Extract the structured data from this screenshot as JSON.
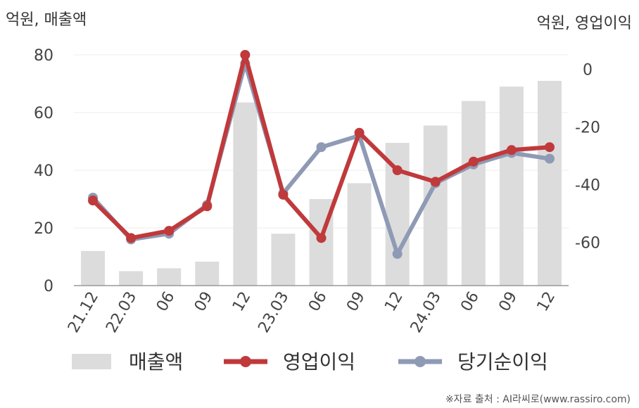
{
  "chart_data": {
    "type": "bar+line",
    "left_axis_title": "억원, 매출액",
    "right_axis_title": "억원, 영업이익",
    "categories": [
      "21.12",
      "22.03",
      "06",
      "09",
      "12",
      "23.03",
      "06",
      "09",
      "12",
      "24.03",
      "06",
      "09",
      "12"
    ],
    "left_ylim": [
      0,
      80
    ],
    "left_ticks": [
      0,
      20,
      40,
      60,
      80
    ],
    "right_ylim": [
      -75,
      5
    ],
    "right_ticks": [
      0,
      -20,
      -40,
      -60
    ],
    "grid": true,
    "legend_position": "bottom",
    "series": [
      {
        "name": "매출액",
        "kind": "bar",
        "axis": "left",
        "color": "#dcdcdc",
        "values": [
          12,
          5,
          6,
          8.3,
          63.5,
          18,
          30,
          35.5,
          49.5,
          55.5,
          64,
          69,
          71
        ]
      },
      {
        "name": "영업이익",
        "kind": "line",
        "axis": "right",
        "color": "#c0393b",
        "values": [
          -45.5,
          -58.5,
          -56,
          -47.5,
          5,
          -43.5,
          -58.5,
          -22,
          -35,
          -39,
          -32,
          -28,
          -27
        ]
      },
      {
        "name": "당기순이익",
        "kind": "line",
        "axis": "right",
        "color": "#8f9ab5",
        "values": [
          -44.5,
          -59,
          -57,
          -47,
          2,
          -43,
          -27,
          -23,
          -64,
          -39.5,
          -33,
          -29,
          -31
        ]
      }
    ]
  },
  "source_text": "※자료 출처 : AI라씨로(www.rassiro.com)"
}
